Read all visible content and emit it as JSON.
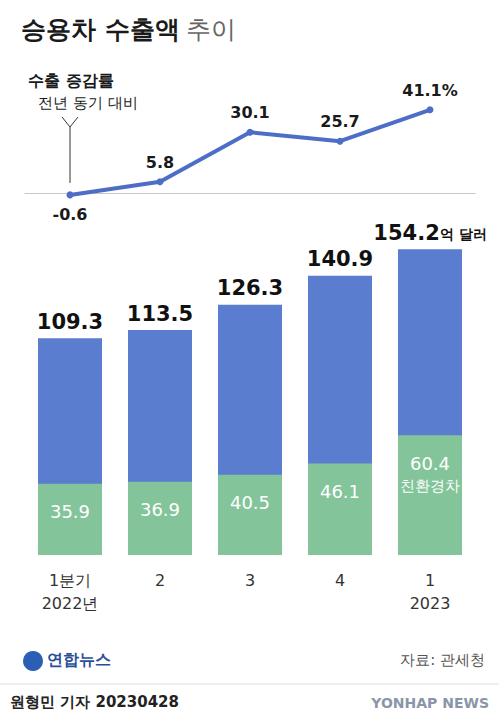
{
  "title": "승용차 수출액 추이",
  "logo": "연합뉴스",
  "source": "자료: 관세청",
  "byline": "원형민 기자 20230428",
  "watermark": "YONHAP NEWS",
  "chart_data": [
    {
      "type": "line",
      "title": "수출 증감률",
      "subtitle": "전년 동기 대비",
      "categories": [
        "1분기\n2022년",
        "2",
        "3",
        "4",
        "1\n2023"
      ],
      "values": [
        -0.6,
        5.8,
        30.1,
        25.7,
        41.1
      ],
      "value_labels": [
        "-0.6",
        "5.8",
        "30.1",
        "25.7",
        "41.1%"
      ],
      "color": "#4d6ec7",
      "ylim": [
        -8,
        65.5
      ],
      "data_labels": true,
      "tick_labels": false,
      "marker": "circle",
      "line_style": "solid"
    },
    {
      "type": "bar",
      "categories": [
        "1분기\n2022년",
        "2",
        "3",
        "4",
        "1\n2023"
      ],
      "series": [
        {
          "values": [
            109.3,
            113.5,
            126.3,
            140.9,
            154.2
          ],
          "value_labels": [
            "109.3",
            "113.5",
            "126.3",
            "140.9",
            "154.2억 달러"
          ],
          "color": "#5a7dd0"
        },
        {
          "name": "친환경차",
          "values": [
            35.9,
            36.9,
            40.5,
            46.1,
            60.4
          ],
          "color": "#84c49a"
        }
      ],
      "ylim": [
        0,
        170
      ],
      "stacked": false,
      "data_labels": true,
      "tick_labels": "x"
    }
  ]
}
